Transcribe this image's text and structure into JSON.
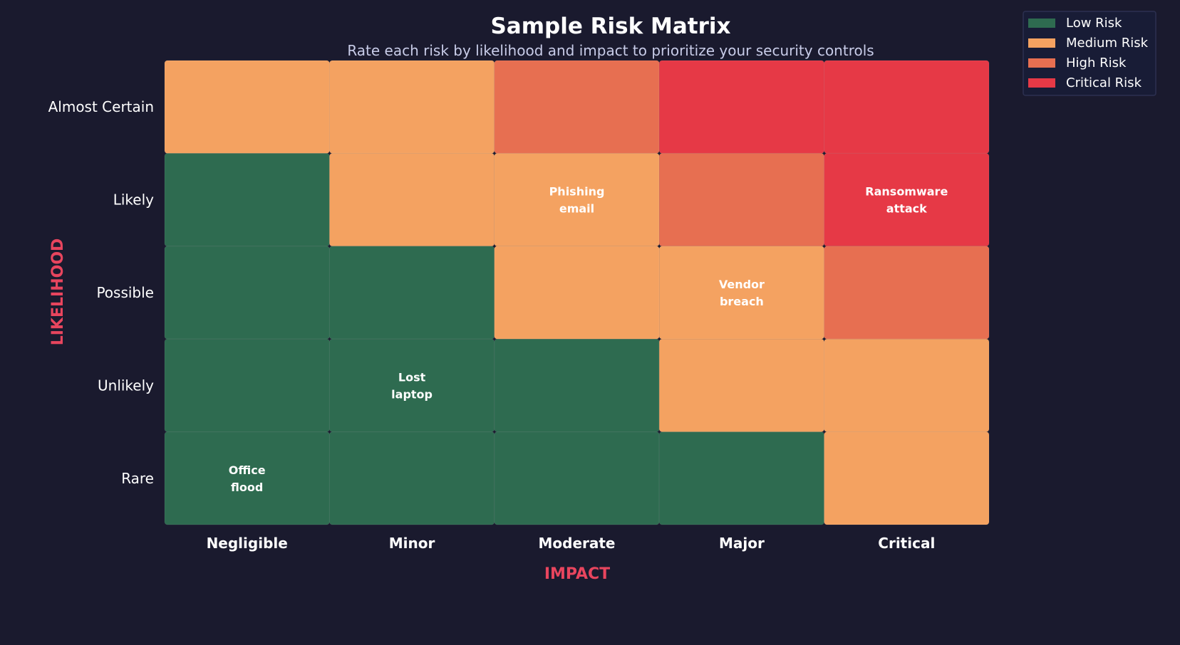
{
  "chart_data": {
    "type": "heatmap",
    "title": "Sample Risk Matrix",
    "subtitle": "Rate each risk by likelihood and impact to prioritize your security controls",
    "xlabel": "IMPACT",
    "ylabel": "LIKELIHOOD",
    "x_categories": [
      "Negligible",
      "Minor",
      "Moderate",
      "Major",
      "Critical"
    ],
    "y_categories": [
      "Almost Certain",
      "Likely",
      "Possible",
      "Unlikely",
      "Rare"
    ],
    "levels": [
      [
        "Medium Risk",
        "Medium Risk",
        "High Risk",
        "Critical Risk",
        "Critical Risk"
      ],
      [
        "Low Risk",
        "Medium Risk",
        "Medium Risk",
        "High Risk",
        "Critical Risk"
      ],
      [
        "Low Risk",
        "Low Risk",
        "Medium Risk",
        "Medium Risk",
        "High Risk"
      ],
      [
        "Low Risk",
        "Low Risk",
        "Low Risk",
        "Medium Risk",
        "Medium Risk"
      ],
      [
        "Low Risk",
        "Low Risk",
        "Low Risk",
        "Low Risk",
        "Medium Risk"
      ]
    ],
    "annotations": [
      {
        "likelihood": "Likely",
        "impact": "Moderate",
        "lines": [
          "Phishing",
          "email"
        ]
      },
      {
        "likelihood": "Likely",
        "impact": "Critical",
        "lines": [
          "Ransomware",
          "attack"
        ]
      },
      {
        "likelihood": "Possible",
        "impact": "Major",
        "lines": [
          "Vendor",
          "breach"
        ]
      },
      {
        "likelihood": "Unlikely",
        "impact": "Minor",
        "lines": [
          "Lost",
          "laptop"
        ]
      },
      {
        "likelihood": "Rare",
        "impact": "Negligible",
        "lines": [
          "Office",
          "flood"
        ]
      }
    ],
    "legend": {
      "placement": "top-right",
      "entries": [
        {
          "name": "Low Risk",
          "color": "#2e6b50"
        },
        {
          "name": "Medium Risk",
          "color": "#f4a261"
        },
        {
          "name": "High Risk",
          "color": "#e76f51"
        },
        {
          "name": "Critical Risk",
          "color": "#e63946"
        }
      ]
    },
    "colors": {
      "background": "#1a1a2e",
      "axis_label": "#e8455e",
      "text": "#ffffff",
      "subtitle": "#c8cce8"
    }
  }
}
